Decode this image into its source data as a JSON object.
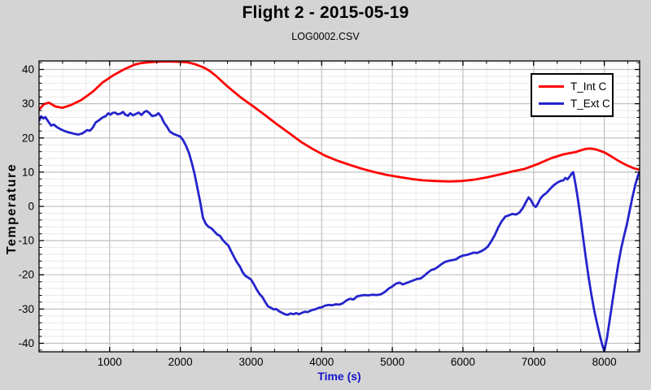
{
  "header": {
    "title": "Flight 2 - 2015-05-19",
    "subtitle": "LOG0002.CSV"
  },
  "colors": {
    "background": "#d4d4d4",
    "plot_background": "#ffffff",
    "grid_major": "#c0c0c0",
    "grid_minor": "#e9e9e9",
    "frame": "#000000",
    "xlabel": "#1414cc",
    "t_int": "#ff0000",
    "t_ext": "#2424cc"
  },
  "legend": {
    "position": "top-right",
    "items": [
      "T_Int C",
      "T_Ext C"
    ]
  },
  "chart_data": {
    "type": "line",
    "title": "Flight 2 - 2015-05-19",
    "subtitle": "LOG0002.CSV",
    "xlabel": "Time (s)",
    "ylabel": "Temperature",
    "xlim": [
      0,
      8500
    ],
    "ylim": [
      -42.5,
      42.5
    ],
    "x_major_ticks": [
      1000,
      2000,
      3000,
      4000,
      5000,
      6000,
      7000,
      8000
    ],
    "y_major_ticks": [
      -40,
      -30,
      -20,
      -10,
      0,
      10,
      20,
      30,
      40
    ],
    "x_minor_step": 333.333,
    "y_minor_step": 2,
    "grid": "major and minor, on",
    "legend_position": "top-right",
    "series": [
      {
        "name": "T_Int C",
        "color": "#ff0000",
        "points": [
          [
            0,
            28.3
          ],
          [
            70,
            29.9
          ],
          [
            140,
            30.3
          ],
          [
            230,
            29.2
          ],
          [
            330,
            28.8
          ],
          [
            450,
            29.6
          ],
          [
            600,
            31.1
          ],
          [
            760,
            33.5
          ],
          [
            900,
            36.2
          ],
          [
            1050,
            38.3
          ],
          [
            1200,
            40.0
          ],
          [
            1350,
            41.4
          ],
          [
            1430,
            41.8
          ],
          [
            1500,
            42.0
          ],
          [
            1600,
            42.2
          ],
          [
            1700,
            42.3
          ],
          [
            1800,
            42.35
          ],
          [
            1900,
            42.3
          ],
          [
            2000,
            42.25
          ],
          [
            2100,
            42.1
          ],
          [
            2200,
            41.6
          ],
          [
            2330,
            40.6
          ],
          [
            2420,
            39.5
          ],
          [
            2500,
            38.2
          ],
          [
            2670,
            35.0
          ],
          [
            2850,
            31.9
          ],
          [
            3020,
            29.4
          ],
          [
            3190,
            26.8
          ],
          [
            3360,
            24.1
          ],
          [
            3540,
            21.4
          ],
          [
            3710,
            18.8
          ],
          [
            3880,
            16.7
          ],
          [
            4050,
            14.8
          ],
          [
            4230,
            13.3
          ],
          [
            4400,
            12.1
          ],
          [
            4570,
            11.0
          ],
          [
            4750,
            10.0
          ],
          [
            4920,
            9.2
          ],
          [
            5090,
            8.6
          ],
          [
            5270,
            8.0
          ],
          [
            5440,
            7.6
          ],
          [
            5620,
            7.4
          ],
          [
            5800,
            7.3
          ],
          [
            5980,
            7.4
          ],
          [
            6160,
            7.8
          ],
          [
            6340,
            8.5
          ],
          [
            6520,
            9.3
          ],
          [
            6700,
            10.2
          ],
          [
            6880,
            11.0
          ],
          [
            7060,
            12.4
          ],
          [
            7240,
            14.0
          ],
          [
            7420,
            15.2
          ],
          [
            7600,
            15.9
          ],
          [
            7700,
            16.6
          ],
          [
            7745,
            16.8
          ],
          [
            7790,
            16.9
          ],
          [
            7840,
            16.8
          ],
          [
            7890,
            16.6
          ],
          [
            8000,
            15.8
          ],
          [
            8100,
            14.6
          ],
          [
            8200,
            13.3
          ],
          [
            8320,
            12.0
          ],
          [
            8420,
            11.1
          ],
          [
            8500,
            10.7
          ]
        ]
      },
      {
        "name": "T_Ext C",
        "color": "#2424cc",
        "points": [
          [
            0,
            25.0
          ],
          [
            30,
            26.3
          ],
          [
            60,
            25.7
          ],
          [
            90,
            26.1
          ],
          [
            130,
            24.8
          ],
          [
            170,
            23.6
          ],
          [
            210,
            23.9
          ],
          [
            250,
            23.2
          ],
          [
            300,
            22.6
          ],
          [
            350,
            22.1
          ],
          [
            420,
            21.6
          ],
          [
            500,
            21.2
          ],
          [
            560,
            21.0
          ],
          [
            620,
            21.4
          ],
          [
            680,
            22.3
          ],
          [
            720,
            22.1
          ],
          [
            760,
            23.0
          ],
          [
            800,
            24.5
          ],
          [
            850,
            25.2
          ],
          [
            900,
            26.0
          ],
          [
            940,
            26.3
          ],
          [
            980,
            27.2
          ],
          [
            1010,
            26.8
          ],
          [
            1040,
            27.3
          ],
          [
            1080,
            27.4
          ],
          [
            1110,
            26.9
          ],
          [
            1150,
            27.1
          ],
          [
            1190,
            27.6
          ],
          [
            1220,
            26.8
          ],
          [
            1260,
            26.5
          ],
          [
            1290,
            27.2
          ],
          [
            1330,
            26.6
          ],
          [
            1370,
            27.0
          ],
          [
            1410,
            27.4
          ],
          [
            1450,
            26.7
          ],
          [
            1490,
            27.6
          ],
          [
            1520,
            27.9
          ],
          [
            1560,
            27.3
          ],
          [
            1600,
            26.4
          ],
          [
            1650,
            26.6
          ],
          [
            1690,
            27.2
          ],
          [
            1730,
            26.2
          ],
          [
            1770,
            24.4
          ],
          [
            1810,
            23.3
          ],
          [
            1850,
            21.9
          ],
          [
            1900,
            21.2
          ],
          [
            1950,
            20.8
          ],
          [
            2000,
            20.4
          ],
          [
            2040,
            19.3
          ],
          [
            2080,
            17.7
          ],
          [
            2120,
            15.7
          ],
          [
            2160,
            12.9
          ],
          [
            2200,
            9.6
          ],
          [
            2240,
            5.5
          ],
          [
            2280,
            1.3
          ],
          [
            2320,
            -3.3
          ],
          [
            2360,
            -5.1
          ],
          [
            2400,
            -6.0
          ],
          [
            2440,
            -6.4
          ],
          [
            2480,
            -7.3
          ],
          [
            2520,
            -8.2
          ],
          [
            2560,
            -8.6
          ],
          [
            2600,
            -9.8
          ],
          [
            2640,
            -10.7
          ],
          [
            2680,
            -11.5
          ],
          [
            2720,
            -13.2
          ],
          [
            2760,
            -14.8
          ],
          [
            2800,
            -16.3
          ],
          [
            2840,
            -17.5
          ],
          [
            2880,
            -19.2
          ],
          [
            2920,
            -20.3
          ],
          [
            2960,
            -20.8
          ],
          [
            3000,
            -21.4
          ],
          [
            3040,
            -22.7
          ],
          [
            3080,
            -24.3
          ],
          [
            3120,
            -25.6
          ],
          [
            3160,
            -26.5
          ],
          [
            3200,
            -27.9
          ],
          [
            3240,
            -29.2
          ],
          [
            3280,
            -29.6
          ],
          [
            3320,
            -30.1
          ],
          [
            3360,
            -30.0
          ],
          [
            3400,
            -30.7
          ],
          [
            3440,
            -31.1
          ],
          [
            3480,
            -31.5
          ],
          [
            3520,
            -31.7
          ],
          [
            3560,
            -31.3
          ],
          [
            3600,
            -31.5
          ],
          [
            3640,
            -31.2
          ],
          [
            3680,
            -31.5
          ],
          [
            3720,
            -31.1
          ],
          [
            3760,
            -30.8
          ],
          [
            3800,
            -30.9
          ],
          [
            3840,
            -30.5
          ],
          [
            3880,
            -30.2
          ],
          [
            3920,
            -30.0
          ],
          [
            3960,
            -29.6
          ],
          [
            4000,
            -29.5
          ],
          [
            4050,
            -29.0
          ],
          [
            4100,
            -28.8
          ],
          [
            4150,
            -28.9
          ],
          [
            4200,
            -28.6
          ],
          [
            4250,
            -28.7
          ],
          [
            4300,
            -28.3
          ],
          [
            4350,
            -27.5
          ],
          [
            4400,
            -27.0
          ],
          [
            4450,
            -27.2
          ],
          [
            4500,
            -26.3
          ],
          [
            4550,
            -26.1
          ],
          [
            4600,
            -25.9
          ],
          [
            4660,
            -26.0
          ],
          [
            4720,
            -25.8
          ],
          [
            4780,
            -25.9
          ],
          [
            4840,
            -25.7
          ],
          [
            4900,
            -24.9
          ],
          [
            4950,
            -24.0
          ],
          [
            5000,
            -23.4
          ],
          [
            5050,
            -22.6
          ],
          [
            5100,
            -22.3
          ],
          [
            5150,
            -22.8
          ],
          [
            5200,
            -22.4
          ],
          [
            5250,
            -22.0
          ],
          [
            5300,
            -21.6
          ],
          [
            5350,
            -21.2
          ],
          [
            5400,
            -21.1
          ],
          [
            5450,
            -20.3
          ],
          [
            5500,
            -19.4
          ],
          [
            5550,
            -18.6
          ],
          [
            5600,
            -18.3
          ],
          [
            5650,
            -17.6
          ],
          [
            5700,
            -16.8
          ],
          [
            5750,
            -16.2
          ],
          [
            5800,
            -15.9
          ],
          [
            5850,
            -15.7
          ],
          [
            5900,
            -15.5
          ],
          [
            5950,
            -14.8
          ],
          [
            6000,
            -14.4
          ],
          [
            6050,
            -14.2
          ],
          [
            6100,
            -13.9
          ],
          [
            6150,
            -13.5
          ],
          [
            6200,
            -13.6
          ],
          [
            6250,
            -13.2
          ],
          [
            6300,
            -12.6
          ],
          [
            6350,
            -11.8
          ],
          [
            6400,
            -10.2
          ],
          [
            6450,
            -8.4
          ],
          [
            6500,
            -6.1
          ],
          [
            6550,
            -4.3
          ],
          [
            6600,
            -3.0
          ],
          [
            6650,
            -2.6
          ],
          [
            6700,
            -2.2
          ],
          [
            6750,
            -2.4
          ],
          [
            6800,
            -1.8
          ],
          [
            6850,
            -0.4
          ],
          [
            6900,
            1.6
          ],
          [
            6930,
            2.6
          ],
          [
            6960,
            1.9
          ],
          [
            7000,
            0.3
          ],
          [
            7030,
            -0.2
          ],
          [
            7060,
            0.8
          ],
          [
            7100,
            2.4
          ],
          [
            7140,
            3.3
          ],
          [
            7180,
            3.9
          ],
          [
            7220,
            4.8
          ],
          [
            7260,
            5.7
          ],
          [
            7300,
            6.4
          ],
          [
            7340,
            7.0
          ],
          [
            7380,
            7.4
          ],
          [
            7420,
            7.6
          ],
          [
            7450,
            8.3
          ],
          [
            7480,
            7.9
          ],
          [
            7510,
            8.7
          ],
          [
            7540,
            9.6
          ],
          [
            7560,
            10.0
          ],
          [
            7590,
            6.8
          ],
          [
            7620,
            3.0
          ],
          [
            7660,
            -2.8
          ],
          [
            7700,
            -9.0
          ],
          [
            7740,
            -15.2
          ],
          [
            7780,
            -21.0
          ],
          [
            7820,
            -26.2
          ],
          [
            7860,
            -30.6
          ],
          [
            7900,
            -34.4
          ],
          [
            7940,
            -38.0
          ],
          [
            7970,
            -40.4
          ],
          [
            8000,
            -42.3
          ],
          [
            8040,
            -38.2
          ],
          [
            8080,
            -32.8
          ],
          [
            8120,
            -27.2
          ],
          [
            8160,
            -21.8
          ],
          [
            8200,
            -16.6
          ],
          [
            8240,
            -12.2
          ],
          [
            8280,
            -8.6
          ],
          [
            8320,
            -5.2
          ],
          [
            8360,
            -1.2
          ],
          [
            8400,
            2.8
          ],
          [
            8440,
            6.4
          ],
          [
            8480,
            9.2
          ],
          [
            8500,
            10.0
          ]
        ]
      }
    ]
  }
}
